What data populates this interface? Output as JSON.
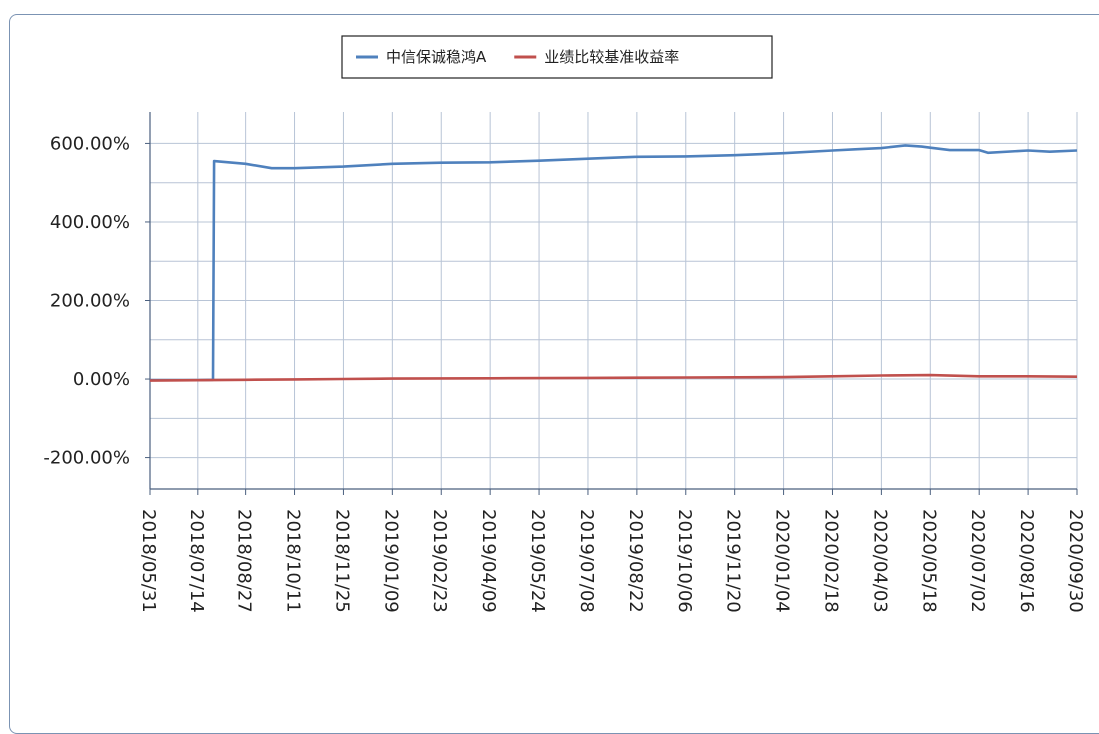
{
  "chart_data": {
    "type": "line",
    "title": "",
    "xlabel": "",
    "ylabel": "",
    "legend_position": "top-center",
    "grid": true,
    "ylim": [
      -280,
      680
    ],
    "y_ticks": [
      -200,
      0,
      200,
      400,
      600
    ],
    "y_tick_labels": [
      "-200.00%",
      "0.00%",
      "200.00%",
      "400.00%",
      "600.00%"
    ],
    "x_range": [
      "2018/05/31",
      "2020/09/30"
    ],
    "x_tick_labels": [
      "2018/05/31",
      "2018/07/14",
      "2018/08/27",
      "2018/10/11",
      "2018/11/25",
      "2019/01/09",
      "2019/02/23",
      "2019/04/09",
      "2019/05/24",
      "2019/07/08",
      "2019/08/22",
      "2019/10/06",
      "2019/11/20",
      "2020/01/04",
      "2020/02/18",
      "2020/04/03",
      "2020/05/18",
      "2020/07/02",
      "2020/08/16",
      "2020/09/30"
    ],
    "series": [
      {
        "name": "中信保诚稳鸿A",
        "color": "#4f81bd",
        "points": [
          [
            "2018/05/31",
            -3
          ],
          [
            "2018/07/14",
            -3
          ],
          [
            "2018/07/28",
            -2
          ],
          [
            "2018/07/29",
            555
          ],
          [
            "2018/08/27",
            548
          ],
          [
            "2018/09/20",
            537
          ],
          [
            "2018/10/11",
            537
          ],
          [
            "2018/11/25",
            541
          ],
          [
            "2019/01/09",
            548
          ],
          [
            "2019/02/23",
            551
          ],
          [
            "2019/04/09",
            552
          ],
          [
            "2019/05/24",
            556
          ],
          [
            "2019/07/08",
            561
          ],
          [
            "2019/08/22",
            566
          ],
          [
            "2019/10/06",
            567
          ],
          [
            "2019/11/20",
            570
          ],
          [
            "2020/01/04",
            575
          ],
          [
            "2020/02/18",
            582
          ],
          [
            "2020/03/10",
            585
          ],
          [
            "2020/04/03",
            588
          ],
          [
            "2020/04/25",
            595
          ],
          [
            "2020/05/10",
            592
          ],
          [
            "2020/05/18",
            589
          ],
          [
            "2020/06/05",
            583
          ],
          [
            "2020/07/02",
            583
          ],
          [
            "2020/07/10",
            576
          ],
          [
            "2020/08/16",
            582
          ],
          [
            "2020/09/05",
            579
          ],
          [
            "2020/09/30",
            582
          ]
        ]
      },
      {
        "name": "业绩比较基准收益率",
        "color": "#c0504d",
        "points": [
          [
            "2018/05/31",
            -4
          ],
          [
            "2018/07/14",
            -3
          ],
          [
            "2018/08/27",
            -2
          ],
          [
            "2018/10/11",
            -1
          ],
          [
            "2018/11/25",
            0
          ],
          [
            "2019/01/09",
            1
          ],
          [
            "2019/04/09",
            2
          ],
          [
            "2019/07/08",
            3
          ],
          [
            "2019/10/06",
            4
          ],
          [
            "2020/01/04",
            5
          ],
          [
            "2020/02/18",
            7
          ],
          [
            "2020/04/03",
            9
          ],
          [
            "2020/05/18",
            10
          ],
          [
            "2020/07/02",
            7
          ],
          [
            "2020/08/16",
            7
          ],
          [
            "2020/09/30",
            6
          ]
        ]
      }
    ]
  }
}
